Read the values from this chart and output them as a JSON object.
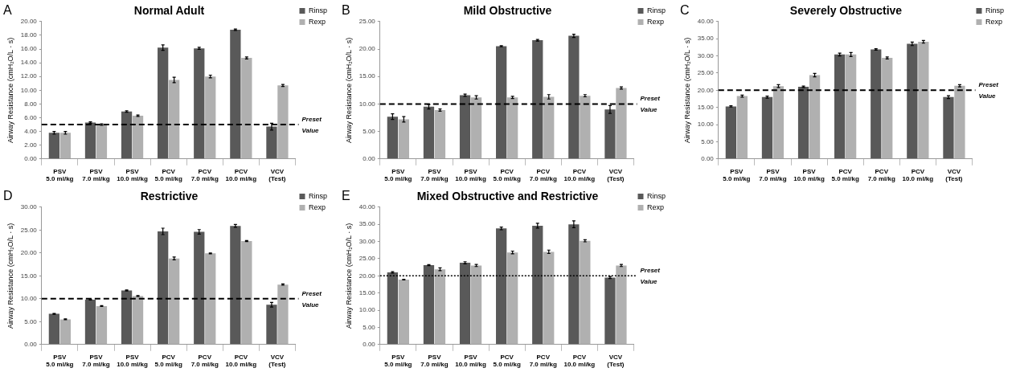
{
  "chart_data": [
    {
      "type": "bar",
      "title": "Normal Adult",
      "annotations": [
        "A"
      ],
      "ylabel": "Airway Resistance (cmH₂O/L · s)",
      "categories": [
        "PSV\n5.0 ml/kg",
        "PSV\n7.0 ml/kg",
        "PSV\n10.0 ml/kg",
        "PCV\n5.0 ml/kg",
        "PCV\n7.0 ml/kg",
        "PCV\n10.0 ml/kg",
        "VCV\n(Test)"
      ],
      "series": [
        {
          "name": "Rinsp",
          "color": "#595959",
          "values": [
            3.8,
            5.3,
            6.9,
            16.2,
            16.1,
            18.8,
            4.7
          ],
          "errors": [
            0.2,
            0.1,
            0.1,
            0.4,
            0.15,
            0.1,
            0.5
          ]
        },
        {
          "name": "Rexp",
          "color": "#b0b0b0",
          "values": [
            3.8,
            5.0,
            6.3,
            11.5,
            12.0,
            14.7,
            10.7
          ],
          "errors": [
            0.2,
            0.1,
            0.1,
            0.4,
            0.2,
            0.15,
            0.15
          ]
        }
      ],
      "ylim": [
        0,
        20
      ],
      "yticks": [
        {
          "value": 0,
          "label": "0.00"
        },
        {
          "value": 2,
          "label": "2.00"
        },
        {
          "value": 4,
          "label": "4.00"
        },
        {
          "value": 6,
          "label": "6.00"
        },
        {
          "value": 8,
          "label": "8.00"
        },
        {
          "value": 10,
          "label": "10.00"
        },
        {
          "value": 12,
          "label": "12.00"
        },
        {
          "value": 14,
          "label": "14.00"
        },
        {
          "value": 16,
          "label": "16.00"
        },
        {
          "value": 18,
          "label": "18.00"
        },
        {
          "value": 20,
          "label": "20.00"
        }
      ],
      "ref_lines": [
        {
          "axis": "y",
          "value": 5,
          "label": "Preset\nValue",
          "color": "#000000",
          "line_style": "dashed"
        }
      ],
      "legend": "top right",
      "grid": false
    },
    {
      "type": "bar",
      "title": "Mild Obstructive",
      "annotations": [
        "B"
      ],
      "ylabel": "Airway Resistance (cmH₂O/L · s)",
      "categories": [
        "PSV\n5.0 ml/kg",
        "PSV\n7.0 ml/kg",
        "PSV\n10.0 ml/kg",
        "PCV\n5.0 ml/kg",
        "PCV\n7.0 ml/kg",
        "PCV\n10.0 ml/kg",
        "VCV\n(Test)"
      ],
      "series": [
        {
          "name": "Rinsp",
          "color": "#595959",
          "values": [
            7.7,
            9.5,
            11.6,
            20.5,
            21.6,
            22.4,
            9.0
          ],
          "errors": [
            0.5,
            0.4,
            0.2,
            0.1,
            0.15,
            0.3,
            0.7
          ]
        },
        {
          "name": "Rexp",
          "color": "#b0b0b0",
          "values": [
            7.2,
            8.9,
            11.2,
            11.2,
            11.3,
            11.5,
            12.9
          ],
          "errors": [
            0.5,
            0.2,
            0.3,
            0.2,
            0.4,
            0.2,
            0.2
          ]
        }
      ],
      "ylim": [
        0,
        25
      ],
      "yticks": [
        {
          "value": 0,
          "label": "0.00"
        },
        {
          "value": 5,
          "label": "5.00"
        },
        {
          "value": 10,
          "label": "10.00"
        },
        {
          "value": 15,
          "label": "15.00"
        },
        {
          "value": 20,
          "label": "20.00"
        },
        {
          "value": 25,
          "label": "25.00"
        }
      ],
      "ref_lines": [
        {
          "axis": "y",
          "value": 10,
          "label": "Preset\nValue",
          "color": "#000000",
          "line_style": "dashed"
        }
      ],
      "legend": "top right",
      "grid": false
    },
    {
      "type": "bar",
      "title": "Severely Obstructive",
      "annotations": [
        "C"
      ],
      "ylabel": "Airway Resistance (cmH₂O/L · s)",
      "categories": [
        "PSV\n5.0 ml/kg",
        "PSV\n7.0 ml/kg",
        "PSV\n10.0 ml/kg",
        "PCV\n5.0 ml/kg",
        "PCV\n7.0 ml/kg",
        "PCV\n10.0 ml/kg",
        "VCV\n(Test)"
      ],
      "series": [
        {
          "name": "Rinsp",
          "color": "#595959",
          "values": [
            15.3,
            18.0,
            21.0,
            30.4,
            31.9,
            33.5,
            18.0
          ],
          "errors": [
            0.2,
            0.3,
            0.2,
            0.4,
            0.2,
            0.5,
            0.4
          ]
        },
        {
          "name": "Rexp",
          "color": "#b0b0b0",
          "values": [
            18.3,
            21.2,
            24.4,
            30.4,
            29.4,
            34.1,
            21.3
          ],
          "errors": [
            0.3,
            0.4,
            0.5,
            0.6,
            0.3,
            0.4,
            0.3
          ]
        }
      ],
      "ylim": [
        0,
        40
      ],
      "yticks": [
        {
          "value": 0,
          "label": "0.00"
        },
        {
          "value": 5,
          "label": "5.00"
        },
        {
          "value": 10,
          "label": "10.00"
        },
        {
          "value": 15,
          "label": "15.00"
        },
        {
          "value": 20,
          "label": "20.00"
        },
        {
          "value": 25,
          "label": "25.00"
        },
        {
          "value": 30,
          "label": "30.00"
        },
        {
          "value": 35,
          "label": "35.00"
        },
        {
          "value": 40,
          "label": "40.00"
        }
      ],
      "ref_lines": [
        {
          "axis": "y",
          "value": 20,
          "label": "Preset\nValue",
          "color": "#000000",
          "line_style": "dashed"
        }
      ],
      "legend": "top right",
      "grid": false
    },
    {
      "type": "bar",
      "title": "Restrictive",
      "annotations": [
        "D"
      ],
      "ylabel": "Airway Resistance (cmH₂O/L · s)",
      "categories": [
        "PSV\n5.0 ml/kg",
        "PSV\n7.0 ml/kg",
        "PSV\n10.0 ml/kg",
        "PCV\n5.0 ml/kg",
        "PCV\n7.0 ml/kg",
        "PCV\n10.0 ml/kg",
        "VCV\n(Test)"
      ],
      "series": [
        {
          "name": "Rinsp",
          "color": "#595959",
          "values": [
            6.7,
            9.8,
            11.8,
            24.7,
            24.6,
            25.9,
            8.7
          ],
          "errors": [
            0.1,
            0.1,
            0.1,
            0.7,
            0.5,
            0.3,
            0.5
          ]
        },
        {
          "name": "Rexp",
          "color": "#b0b0b0",
          "values": [
            5.5,
            8.4,
            10.6,
            18.8,
            19.9,
            22.6,
            13.1
          ],
          "errors": [
            0.1,
            0.1,
            0.1,
            0.3,
            0.1,
            0.1,
            0.15
          ]
        }
      ],
      "ylim": [
        0,
        30
      ],
      "yticks": [
        {
          "value": 0,
          "label": "0.00"
        },
        {
          "value": 5,
          "label": "5.00"
        },
        {
          "value": 10,
          "label": "10.00"
        },
        {
          "value": 15,
          "label": "15.00"
        },
        {
          "value": 20,
          "label": "20.00"
        },
        {
          "value": 25,
          "label": "25.00"
        },
        {
          "value": 30,
          "label": "30.00"
        }
      ],
      "ref_lines": [
        {
          "axis": "y",
          "value": 10,
          "label": "Preset\nValue",
          "color": "#000000",
          "line_style": "dashed"
        }
      ],
      "legend": "top right",
      "grid": false
    },
    {
      "type": "bar",
      "title": "Mixed Obstructive and Restrictive",
      "annotations": [
        "E"
      ],
      "ylabel": "Airway Resistance (cmH₂O/L · s)",
      "categories": [
        "PSV\n5.0 ml/kg",
        "PSV\n7.0 ml/kg",
        "PSV\n10.0 ml/kg",
        "PCV\n5.0 ml/kg",
        "PCV\n7.0 ml/kg",
        "PCV\n10.0 ml/kg",
        "VCV\n(Test)"
      ],
      "series": [
        {
          "name": "Rinsp",
          "color": "#595959",
          "values": [
            21.0,
            23.1,
            23.8,
            33.8,
            34.6,
            35.0,
            19.5
          ],
          "errors": [
            0.2,
            0.15,
            0.3,
            0.4,
            0.7,
            1.0,
            0.3
          ]
        },
        {
          "name": "Rexp",
          "color": "#b0b0b0",
          "values": [
            18.9,
            21.9,
            23.0,
            26.8,
            27.0,
            30.2,
            23.0
          ],
          "errors": [
            0.1,
            0.4,
            0.3,
            0.4,
            0.5,
            0.3,
            0.3
          ]
        }
      ],
      "ylim": [
        0,
        40
      ],
      "yticks": [
        {
          "value": 0,
          "label": "0.00"
        },
        {
          "value": 5,
          "label": "5.00"
        },
        {
          "value": 10,
          "label": "10.00"
        },
        {
          "value": 15,
          "label": "15.00"
        },
        {
          "value": 20,
          "label": "20.00"
        },
        {
          "value": 25,
          "label": "25.00"
        },
        {
          "value": 30,
          "label": "30.00"
        },
        {
          "value": 35,
          "label": "35.00"
        },
        {
          "value": 40,
          "label": "40.00"
        }
      ],
      "ref_lines": [
        {
          "axis": "y",
          "value": 20,
          "label": "Preset\nValue",
          "color": "#000000",
          "line_style": "dotted"
        }
      ],
      "legend": "top right",
      "grid": false
    }
  ]
}
